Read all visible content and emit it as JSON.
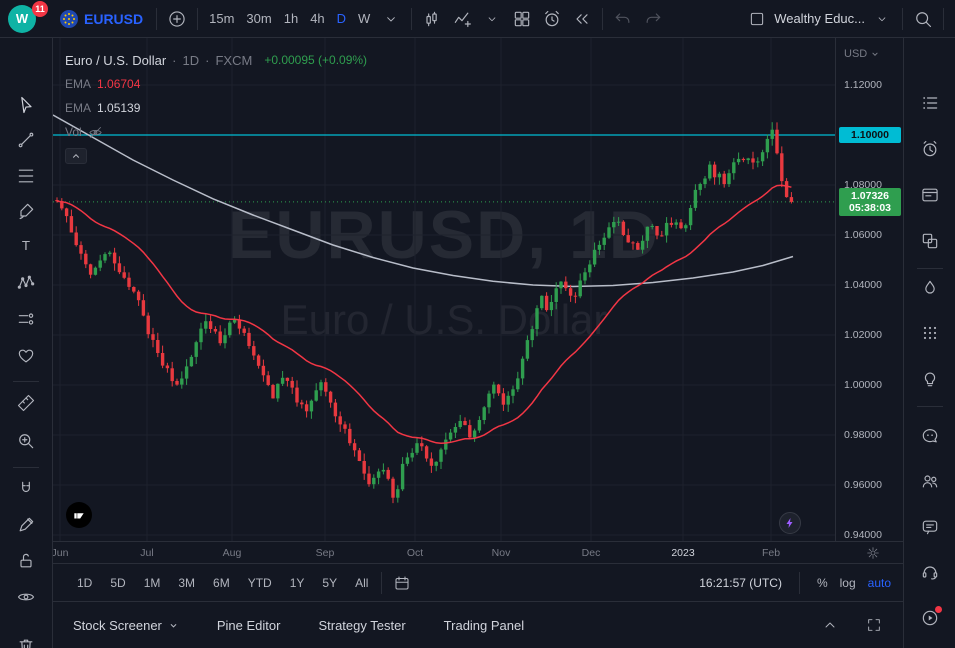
{
  "topbar": {
    "notification_badge": "11",
    "symbol_button": "EURUSD",
    "intervals": [
      {
        "label": "15m",
        "active": false
      },
      {
        "label": "30m",
        "active": false
      },
      {
        "label": "1h",
        "active": false
      },
      {
        "label": "4h",
        "active": false
      },
      {
        "label": "D",
        "active": true
      },
      {
        "label": "W",
        "active": false
      }
    ],
    "layout_button": "Wealthy Educ..."
  },
  "legend": {
    "title": "Euro / U.S. Dollar",
    "sep": "·",
    "interval": "1D",
    "provider": "FXCM",
    "change": "+0.00095 (+0.09%)",
    "ema_fast_label": "EMA",
    "ema_fast_value": "1.06704",
    "ema_slow_label": "EMA",
    "ema_slow_value": "1.05139",
    "vol_label": "Vol"
  },
  "watermark": {
    "line1": "EURUSD, 1D",
    "line2": "Euro / U.S. Dollar"
  },
  "price_axis": {
    "currency_label": "USD",
    "cyan_label": "1.10000",
    "green_label_price": "1.07326",
    "green_label_countdown": "05:38:03"
  },
  "range_bar": {
    "ranges": [
      "1D",
      "5D",
      "1M",
      "3M",
      "6M",
      "YTD",
      "1Y",
      "5Y",
      "All"
    ],
    "clock": "16:21:57 (UTC)",
    "percent_label": "%",
    "log_label": "log",
    "auto_label": "auto"
  },
  "bottom_panel": {
    "items": [
      "Stock Screener",
      "Pine Editor",
      "Strategy Tester",
      "Trading Panel"
    ]
  },
  "icons": {
    "topbar": [
      "we-logo",
      "eu-flag-icon",
      "plus-icon",
      "chevron-down-icon",
      "candles-icon",
      "compare-icon",
      "grid-layout-icon",
      "alert-clock-icon",
      "replay-icon",
      "undo-icon",
      "redo-icon",
      "layout-box-icon",
      "search-icon"
    ],
    "left_toolbar": [
      "cursor-icon",
      "trend-line-icon",
      "fib-lines-icon",
      "brush-icon",
      "text-icon",
      "xabcd-pattern-icon",
      "prediction-icon",
      "heart-icon",
      "ruler-icon",
      "zoom-in-icon",
      "magnet-icon",
      "pencil-icon",
      "lock-icon",
      "eye-icon",
      "trash-icon"
    ],
    "right_toolbar": [
      "watchlist-icon",
      "alerts-icon",
      "news-icon",
      "data-window-icon",
      "hotlists-icon",
      "calendar-icon",
      "ideas-icon",
      "chat-cloud-icon",
      "community-icon",
      "private-chat-icon",
      "support-icon",
      "streams-icon",
      "notifications-icon"
    ],
    "chart": [
      "tradingview-logo",
      "flash-icon",
      "gear-icon",
      "eye-off-icon",
      "collapse-icon"
    ]
  },
  "chart_data": {
    "type": "candlestick",
    "symbol": "EURUSD",
    "interval": "1D",
    "ylim": [
      0.94,
      1.12
    ],
    "grid_prices": [
      1.12,
      1.1,
      1.08,
      1.06,
      1.04,
      1.02,
      1.0,
      0.98,
      0.96,
      0.94
    ],
    "price_tick_labels": [
      "1.12000",
      "1.10000",
      "1.08000",
      "1.06000",
      "1.04000",
      "1.02000",
      "1.00000",
      "0.98000",
      "0.96000",
      "0.94000"
    ],
    "time_labels": [
      {
        "text": "Jun",
        "x": 7
      },
      {
        "text": "Jul",
        "x": 94
      },
      {
        "text": "Aug",
        "x": 179
      },
      {
        "text": "Sep",
        "x": 272
      },
      {
        "text": "Oct",
        "x": 362
      },
      {
        "text": "Nov",
        "x": 448
      },
      {
        "text": "Dec",
        "x": 538
      },
      {
        "text": "2023",
        "x": 630
      },
      {
        "text": "Feb",
        "x": 718
      }
    ],
    "levels": {
      "cyan_line": 1.1,
      "current_price": 1.07326,
      "ema_fast": 1.06704,
      "ema_slow": 1.05139
    },
    "price_anchors": [
      [
        4,
        1.076
      ],
      [
        20,
        1.066
      ],
      [
        34,
        1.05
      ],
      [
        46,
        1.044
      ],
      [
        57,
        1.054
      ],
      [
        70,
        1.046
      ],
      [
        86,
        1.037
      ],
      [
        100,
        1.022
      ],
      [
        114,
        1.008
      ],
      [
        130,
        0.999
      ],
      [
        145,
        1.015
      ],
      [
        160,
        1.026
      ],
      [
        172,
        1.017
      ],
      [
        186,
        1.026
      ],
      [
        200,
        1.016
      ],
      [
        214,
        1.004
      ],
      [
        226,
        0.995
      ],
      [
        236,
        1.006
      ],
      [
        246,
        0.996
      ],
      [
        260,
        0.991
      ],
      [
        274,
        1.001
      ],
      [
        290,
        0.986
      ],
      [
        306,
        0.975
      ],
      [
        320,
        0.961
      ],
      [
        334,
        0.967
      ],
      [
        346,
        0.955
      ],
      [
        356,
        0.969
      ],
      [
        370,
        0.977
      ],
      [
        382,
        0.965
      ],
      [
        396,
        0.976
      ],
      [
        410,
        0.986
      ],
      [
        422,
        0.979
      ],
      [
        436,
        0.99
      ],
      [
        446,
        1.0
      ],
      [
        456,
        0.99
      ],
      [
        468,
        1.001
      ],
      [
        482,
        1.021
      ],
      [
        492,
        1.035
      ],
      [
        502,
        1.03
      ],
      [
        512,
        1.041
      ],
      [
        526,
        1.035
      ],
      [
        538,
        1.047
      ],
      [
        552,
        1.057
      ],
      [
        566,
        1.066
      ],
      [
        580,
        1.059
      ],
      [
        592,
        1.054
      ],
      [
        602,
        1.065
      ],
      [
        612,
        1.057
      ],
      [
        622,
        1.066
      ],
      [
        636,
        1.061
      ],
      [
        648,
        1.077
      ],
      [
        662,
        1.087
      ],
      [
        676,
        1.081
      ],
      [
        692,
        1.092
      ],
      [
        706,
        1.088
      ],
      [
        716,
        1.095
      ],
      [
        724,
        1.103
      ],
      [
        732,
        1.085
      ],
      [
        738,
        1.0733
      ]
    ],
    "ema_slow_anchors": [
      [
        0,
        1.108
      ],
      [
        40,
        1.099
      ],
      [
        80,
        1.09
      ],
      [
        120,
        1.082
      ],
      [
        160,
        1.0745
      ],
      [
        200,
        1.068
      ],
      [
        240,
        1.062
      ],
      [
        280,
        1.056
      ],
      [
        320,
        1.051
      ],
      [
        360,
        1.0468
      ],
      [
        400,
        1.0438
      ],
      [
        440,
        1.0415
      ],
      [
        480,
        1.04
      ],
      [
        520,
        1.0394
      ],
      [
        560,
        1.0398
      ],
      [
        600,
        1.041
      ],
      [
        640,
        1.0428
      ],
      [
        680,
        1.0452
      ],
      [
        710,
        1.0478
      ],
      [
        740,
        1.0514
      ]
    ],
    "colors": {
      "up": "#2f9e4f",
      "down": "#e8393f",
      "ema_fast": "#f23645",
      "ema_slow": "#b8bdc9",
      "cyan": "#00bcd4",
      "grid": "#1e222d"
    }
  }
}
